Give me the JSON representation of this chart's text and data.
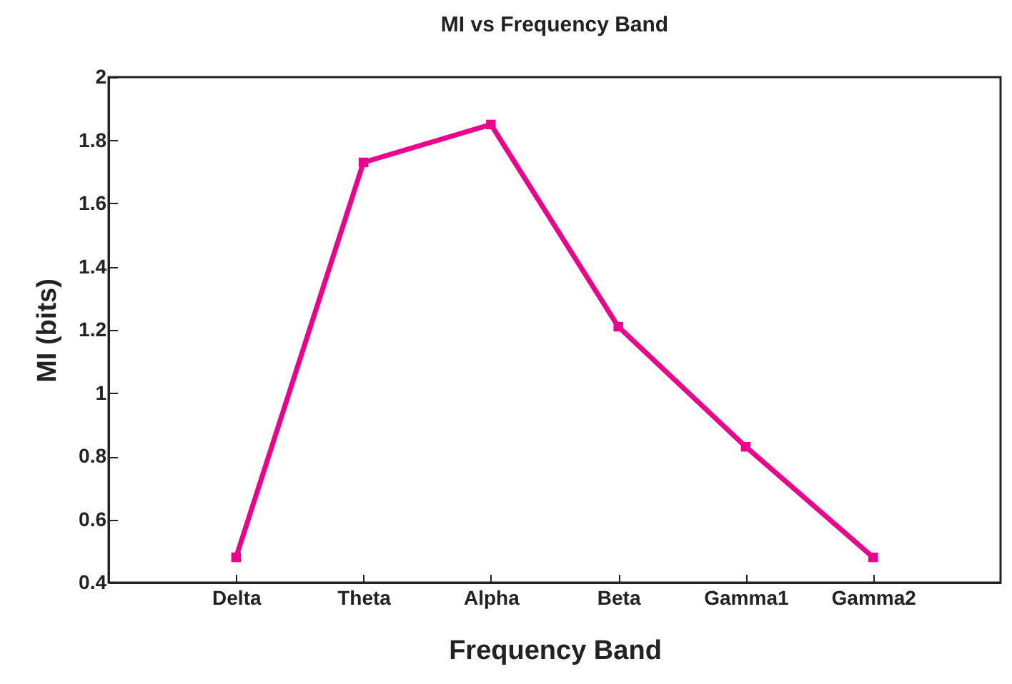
{
  "chart_data": {
    "type": "line",
    "title": "MI vs Frequency Band",
    "xlabel": "Frequency Band",
    "ylabel": "MI (bits)",
    "categories": [
      "Delta",
      "Theta",
      "Alpha",
      "Beta",
      "Gamma1",
      "Gamma2"
    ],
    "series": [
      {
        "color": "#ec008c",
        "values": [
          0.48,
          1.73,
          1.85,
          1.21,
          0.83,
          0.48
        ]
      }
    ],
    "ylim": [
      0.4,
      2
    ],
    "yticks": [
      0.4,
      0.6,
      0.8,
      1,
      1.2,
      1.4,
      1.6,
      1.8,
      2
    ],
    "marker": "square",
    "line_style": "solid",
    "grid": false,
    "legend": false
  }
}
